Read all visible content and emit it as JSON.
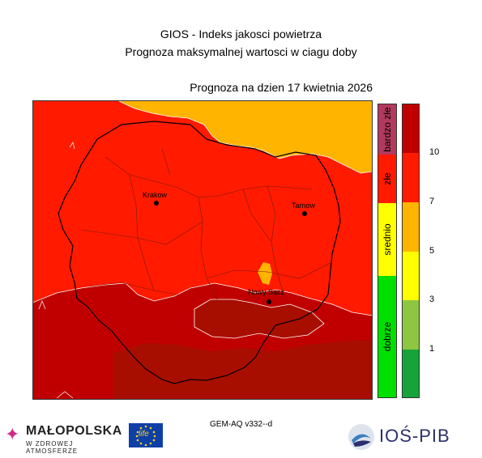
{
  "header": {
    "title_line1": "GIOS - Indeks jakosci powietrza",
    "title_line2": "Prognoza maksymalnej wartosci w ciagu doby",
    "forecast_date": "Prognoza na dzien  17 kwietnia 2026"
  },
  "map": {
    "cities": [
      {
        "name": "Krakow"
      },
      {
        "name": "Tarnow"
      },
      {
        "name": "Nowy Sacz"
      }
    ],
    "colors": {
      "very_bad": "#a41000",
      "bad": "#ff1a00",
      "moderate_orange": "#ffb400",
      "moderate_yellow": "#ffff00",
      "good_light": "#8dc641",
      "good": "#17a33a",
      "very_good": "#00e000",
      "very_bad_cat": "#b33a5e"
    }
  },
  "legend": {
    "categories": [
      {
        "label": "bardzo złe",
        "color": "#b33a5e"
      },
      {
        "label": "złe",
        "color": "#ff1a00"
      },
      {
        "label": "srednio",
        "color": "#ffff00"
      },
      {
        "label": "dobrze",
        "color": "#00e000"
      }
    ],
    "scale": [
      {
        "color": "#c00000"
      },
      {
        "color": "#ff1a00"
      },
      {
        "color": "#ffb400"
      },
      {
        "color": "#ffff00"
      },
      {
        "color": "#8dc641"
      },
      {
        "color": "#17a33a"
      }
    ],
    "ticks": [
      "10",
      "7",
      "5",
      "3",
      "1"
    ]
  },
  "footer": {
    "model": "GEM-AQ v332--d",
    "logo_malopolska": "MAŁOPOLSKA",
    "logo_malopolska_sub": "W ZDROWEJ ATMOSFERZE",
    "logo_eu": "life",
    "logo_ios": "IOŚ-PIB"
  }
}
